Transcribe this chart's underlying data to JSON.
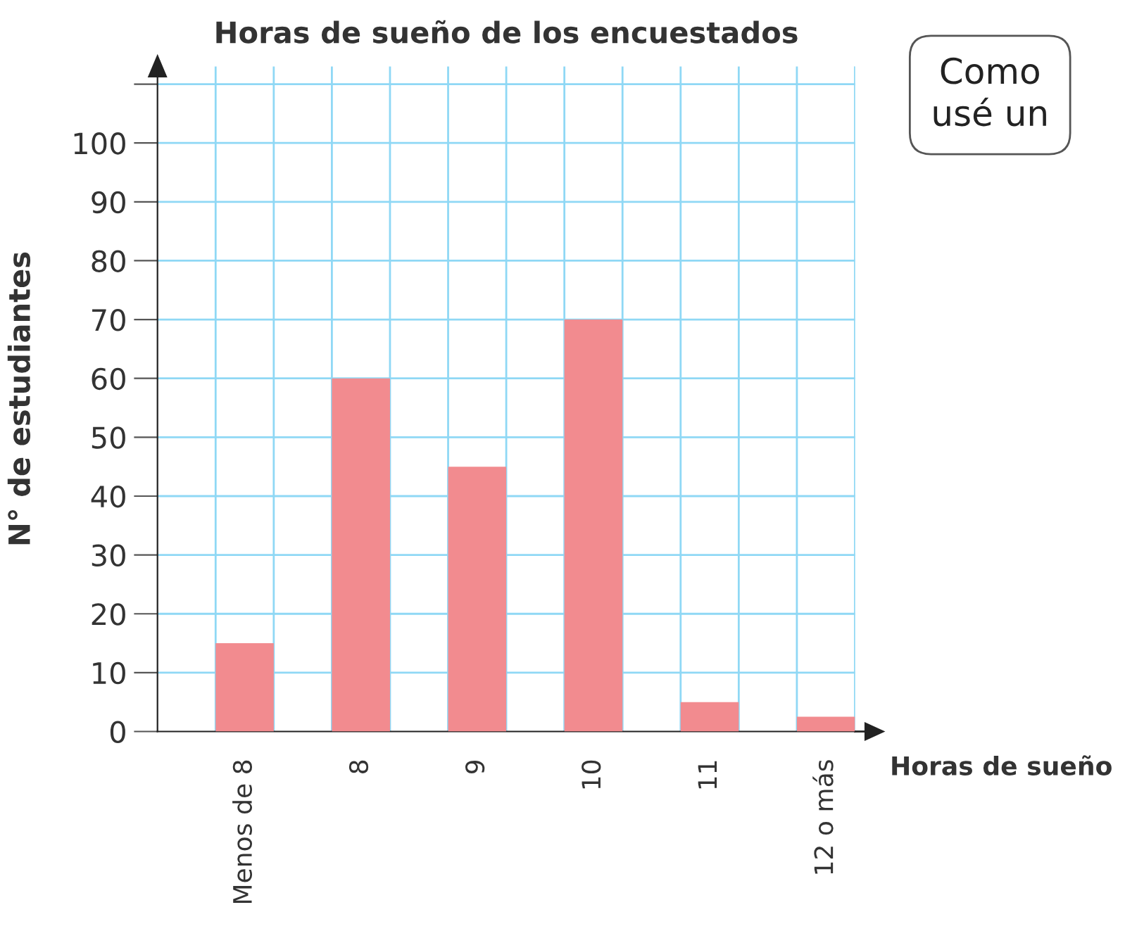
{
  "chart_data": {
    "type": "bar",
    "title": "Horas de sueño de los encuestados",
    "xlabel": "Horas de sueño",
    "ylabel": "N° de estudiantes",
    "categories": [
      "Menos de 8",
      "8",
      "9",
      "10",
      "11",
      "12 o más"
    ],
    "values": [
      15,
      60,
      45,
      70,
      5,
      2.5
    ],
    "color": "#f28b8f",
    "ylim": [
      0,
      113
    ],
    "yticks": [
      0,
      10,
      20,
      30,
      40,
      50,
      60,
      70,
      80,
      90,
      100,
      {
        "value": 110,
        "label": null
      }
    ],
    "grid": true,
    "legend": false,
    "annotations": [
      "Como\nusé un"
    ]
  }
}
